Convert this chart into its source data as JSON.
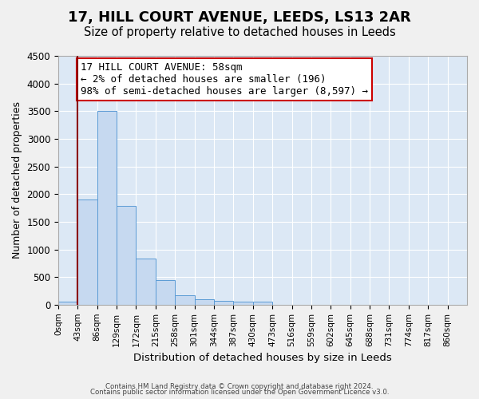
{
  "title": "17, HILL COURT AVENUE, LEEDS, LS13 2AR",
  "subtitle": "Size of property relative to detached houses in Leeds",
  "xlabel": "Distribution of detached houses by size in Leeds",
  "ylabel": "Number of detached properties",
  "bin_labels": [
    "0sqm",
    "43sqm",
    "86sqm",
    "129sqm",
    "172sqm",
    "215sqm",
    "258sqm",
    "301sqm",
    "344sqm",
    "387sqm",
    "430sqm",
    "473sqm",
    "516sqm",
    "559sqm",
    "602sqm",
    "645sqm",
    "688sqm",
    "731sqm",
    "774sqm",
    "817sqm",
    "860sqm"
  ],
  "bar_values": [
    50,
    1900,
    3500,
    1780,
    840,
    450,
    165,
    100,
    65,
    55,
    55,
    0,
    0,
    0,
    0,
    0,
    0,
    0,
    0,
    0
  ],
  "bar_color": "#c6d9f0",
  "bar_edge_color": "#5b9bd5",
  "vline_x": 1,
  "vline_color": "#8b0000",
  "annotation_text": "17 HILL COURT AVENUE: 58sqm\n← 2% of detached houses are smaller (196)\n98% of semi-detached houses are larger (8,597) →",
  "annotation_box_color": "#ffffff",
  "annotation_box_edge_color": "#cc0000",
  "annotation_fontsize": 9,
  "ylim": [
    0,
    4500
  ],
  "yticks": [
    0,
    500,
    1000,
    1500,
    2000,
    2500,
    3000,
    3500,
    4000,
    4500
  ],
  "background_color": "#dce8f5",
  "footer_line1": "Contains HM Land Registry data © Crown copyright and database right 2024.",
  "footer_line2": "Contains public sector information licensed under the Open Government Licence v3.0.",
  "title_fontsize": 13,
  "subtitle_fontsize": 10.5
}
